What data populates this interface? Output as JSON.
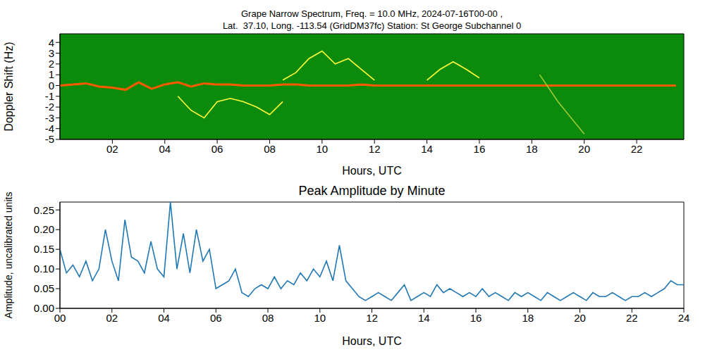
{
  "chart_data": [
    {
      "type": "line",
      "title": [
        "Grape Narrow Spectrum, Freq. = 10.0 MHz, 2024-07-16T00-00 ,",
        "Lat.  37.10, Long. -113.54 (GridDM37fc) Station: St George Subchannel 0"
      ],
      "x_label": "Hours, UTC",
      "y_label": "Doppler Shift (Hz)",
      "xlim": [
        0,
        23.8
      ],
      "xticks": [
        {
          "value": 2,
          "label": "02"
        },
        {
          "value": 4,
          "label": "04"
        },
        {
          "value": 6,
          "label": "06"
        },
        {
          "value": 8,
          "label": "08"
        },
        10,
        12,
        14,
        16,
        18,
        20,
        22
      ],
      "ylim": [
        -5,
        4.8
      ],
      "yticks": [
        -5,
        -4,
        -3,
        -2,
        -1,
        0,
        1,
        2,
        3,
        4
      ],
      "grid": false,
      "series": [
        {
          "color": "#ff5a00",
          "x": [
            0,
            0.5,
            1,
            1.5,
            2,
            2.5,
            3,
            3.5,
            4,
            4.5,
            5,
            5.5,
            6,
            6.5,
            7,
            7.5,
            8,
            8.5,
            9,
            9.5,
            10,
            10.5,
            11,
            11.5,
            12,
            12.5,
            13,
            13.5,
            14,
            14.5,
            15,
            15.5,
            16,
            16.5,
            17,
            17.5,
            18,
            18.5,
            19,
            19.5,
            20,
            20.5,
            21,
            21.5,
            22,
            22.5,
            23,
            23.5
          ],
          "values": [
            0,
            0.1,
            0.2,
            -0.1,
            -0.2,
            -0.4,
            0.3,
            -0.3,
            0.1,
            0.3,
            -0.1,
            0.2,
            0.1,
            0.1,
            0,
            0,
            0,
            0.1,
            0.1,
            0,
            0,
            0,
            0,
            0.1,
            0,
            0,
            0,
            0,
            0,
            0,
            0,
            0,
            0,
            0,
            0,
            0,
            0,
            0,
            0,
            0,
            0,
            0,
            0,
            0,
            0,
            0,
            0,
            0
          ]
        },
        {
          "color": "#ffff33",
          "x": [
            4.5,
            5,
            5.5,
            6,
            6.5,
            7,
            7.5,
            8,
            8.5
          ],
          "values": [
            -1,
            -2.3,
            -3,
            -1.5,
            -1.2,
            -1.5,
            -2,
            -2.7,
            -1.5
          ]
        },
        {
          "color": "#ffff33",
          "x": [
            8.5,
            9,
            9.5,
            10,
            10.5,
            11,
            11.5,
            12
          ],
          "values": [
            0.5,
            1.2,
            2.5,
            3.2,
            2,
            2.5,
            1.5,
            0.5
          ]
        },
        {
          "color": "#ffff33",
          "x": [
            14,
            14.5,
            15,
            15.5,
            16
          ],
          "values": [
            0.5,
            1.5,
            2.2,
            1.5,
            0.7
          ]
        },
        {
          "color": "#9acd32",
          "x": [
            18.3,
            19,
            19.5,
            20
          ],
          "values": [
            1,
            -1.5,
            -3,
            -4.5
          ]
        }
      ]
    },
    {
      "type": "line",
      "title": "Peak Amplitude by Minute",
      "x_label": "Hours, UTC",
      "y_label": "Amplitude, uncalibrated units",
      "xlim": [
        0,
        24
      ],
      "xticks": [
        {
          "value": 0,
          "label": "00"
        },
        {
          "value": 2,
          "label": "02"
        },
        {
          "value": 4,
          "label": "04"
        },
        {
          "value": 6,
          "label": "06"
        },
        {
          "value": 8,
          "label": "08"
        },
        10,
        12,
        14,
        16,
        18,
        20,
        22,
        24
      ],
      "ylim": [
        0,
        0.27
      ],
      "yticks": [
        {
          "value": 0,
          "label": "0.00"
        },
        0.05,
        {
          "value": 0.1,
          "label": "0.10"
        },
        0.15,
        {
          "value": 0.2,
          "label": "0.20"
        },
        0.25
      ],
      "grid": false,
      "series": [
        {
          "color": "#1f77b4",
          "x": [
            0,
            0.25,
            0.5,
            0.75,
            1,
            1.25,
            1.5,
            1.75,
            2,
            2.25,
            2.5,
            2.75,
            3,
            3.25,
            3.5,
            3.75,
            4,
            4.25,
            4.5,
            4.75,
            5,
            5.25,
            5.5,
            5.75,
            6,
            6.25,
            6.5,
            6.75,
            7,
            7.25,
            7.5,
            7.75,
            8,
            8.25,
            8.5,
            8.75,
            9,
            9.25,
            9.5,
            9.75,
            10,
            10.25,
            10.5,
            10.75,
            11,
            11.25,
            11.5,
            11.75,
            12,
            12.25,
            12.5,
            12.75,
            13,
            13.25,
            13.5,
            13.75,
            14,
            14.25,
            14.5,
            14.75,
            15,
            15.25,
            15.5,
            15.75,
            16,
            16.25,
            16.5,
            16.75,
            17,
            17.25,
            17.5,
            17.75,
            18,
            18.25,
            18.5,
            18.75,
            19,
            19.25,
            19.5,
            19.75,
            20,
            20.25,
            20.5,
            20.75,
            21,
            21.25,
            21.5,
            21.75,
            22,
            22.25,
            22.5,
            22.75,
            23,
            23.25,
            23.5,
            23.75,
            24
          ],
          "values": [
            0.15,
            0.09,
            0.11,
            0.08,
            0.12,
            0.07,
            0.1,
            0.2,
            0.12,
            0.07,
            0.225,
            0.13,
            0.12,
            0.09,
            0.17,
            0.1,
            0.08,
            0.27,
            0.1,
            0.19,
            0.09,
            0.2,
            0.12,
            0.15,
            0.05,
            0.06,
            0.07,
            0.1,
            0.04,
            0.03,
            0.05,
            0.06,
            0.05,
            0.08,
            0.05,
            0.07,
            0.06,
            0.09,
            0.07,
            0.1,
            0.08,
            0.12,
            0.07,
            0.16,
            0.07,
            0.05,
            0.03,
            0.02,
            0.03,
            0.04,
            0.03,
            0.02,
            0.04,
            0.06,
            0.02,
            0.03,
            0.04,
            0.03,
            0.06,
            0.04,
            0.05,
            0.04,
            0.03,
            0.04,
            0.03,
            0.05,
            0.03,
            0.04,
            0.03,
            0.02,
            0.04,
            0.03,
            0.04,
            0.03,
            0.02,
            0.04,
            0.03,
            0.02,
            0.03,
            0.04,
            0.03,
            0.02,
            0.04,
            0.03,
            0.03,
            0.04,
            0.03,
            0.02,
            0.03,
            0.03,
            0.04,
            0.03,
            0.04,
            0.05,
            0.07,
            0.06,
            0.06
          ]
        }
      ]
    }
  ]
}
